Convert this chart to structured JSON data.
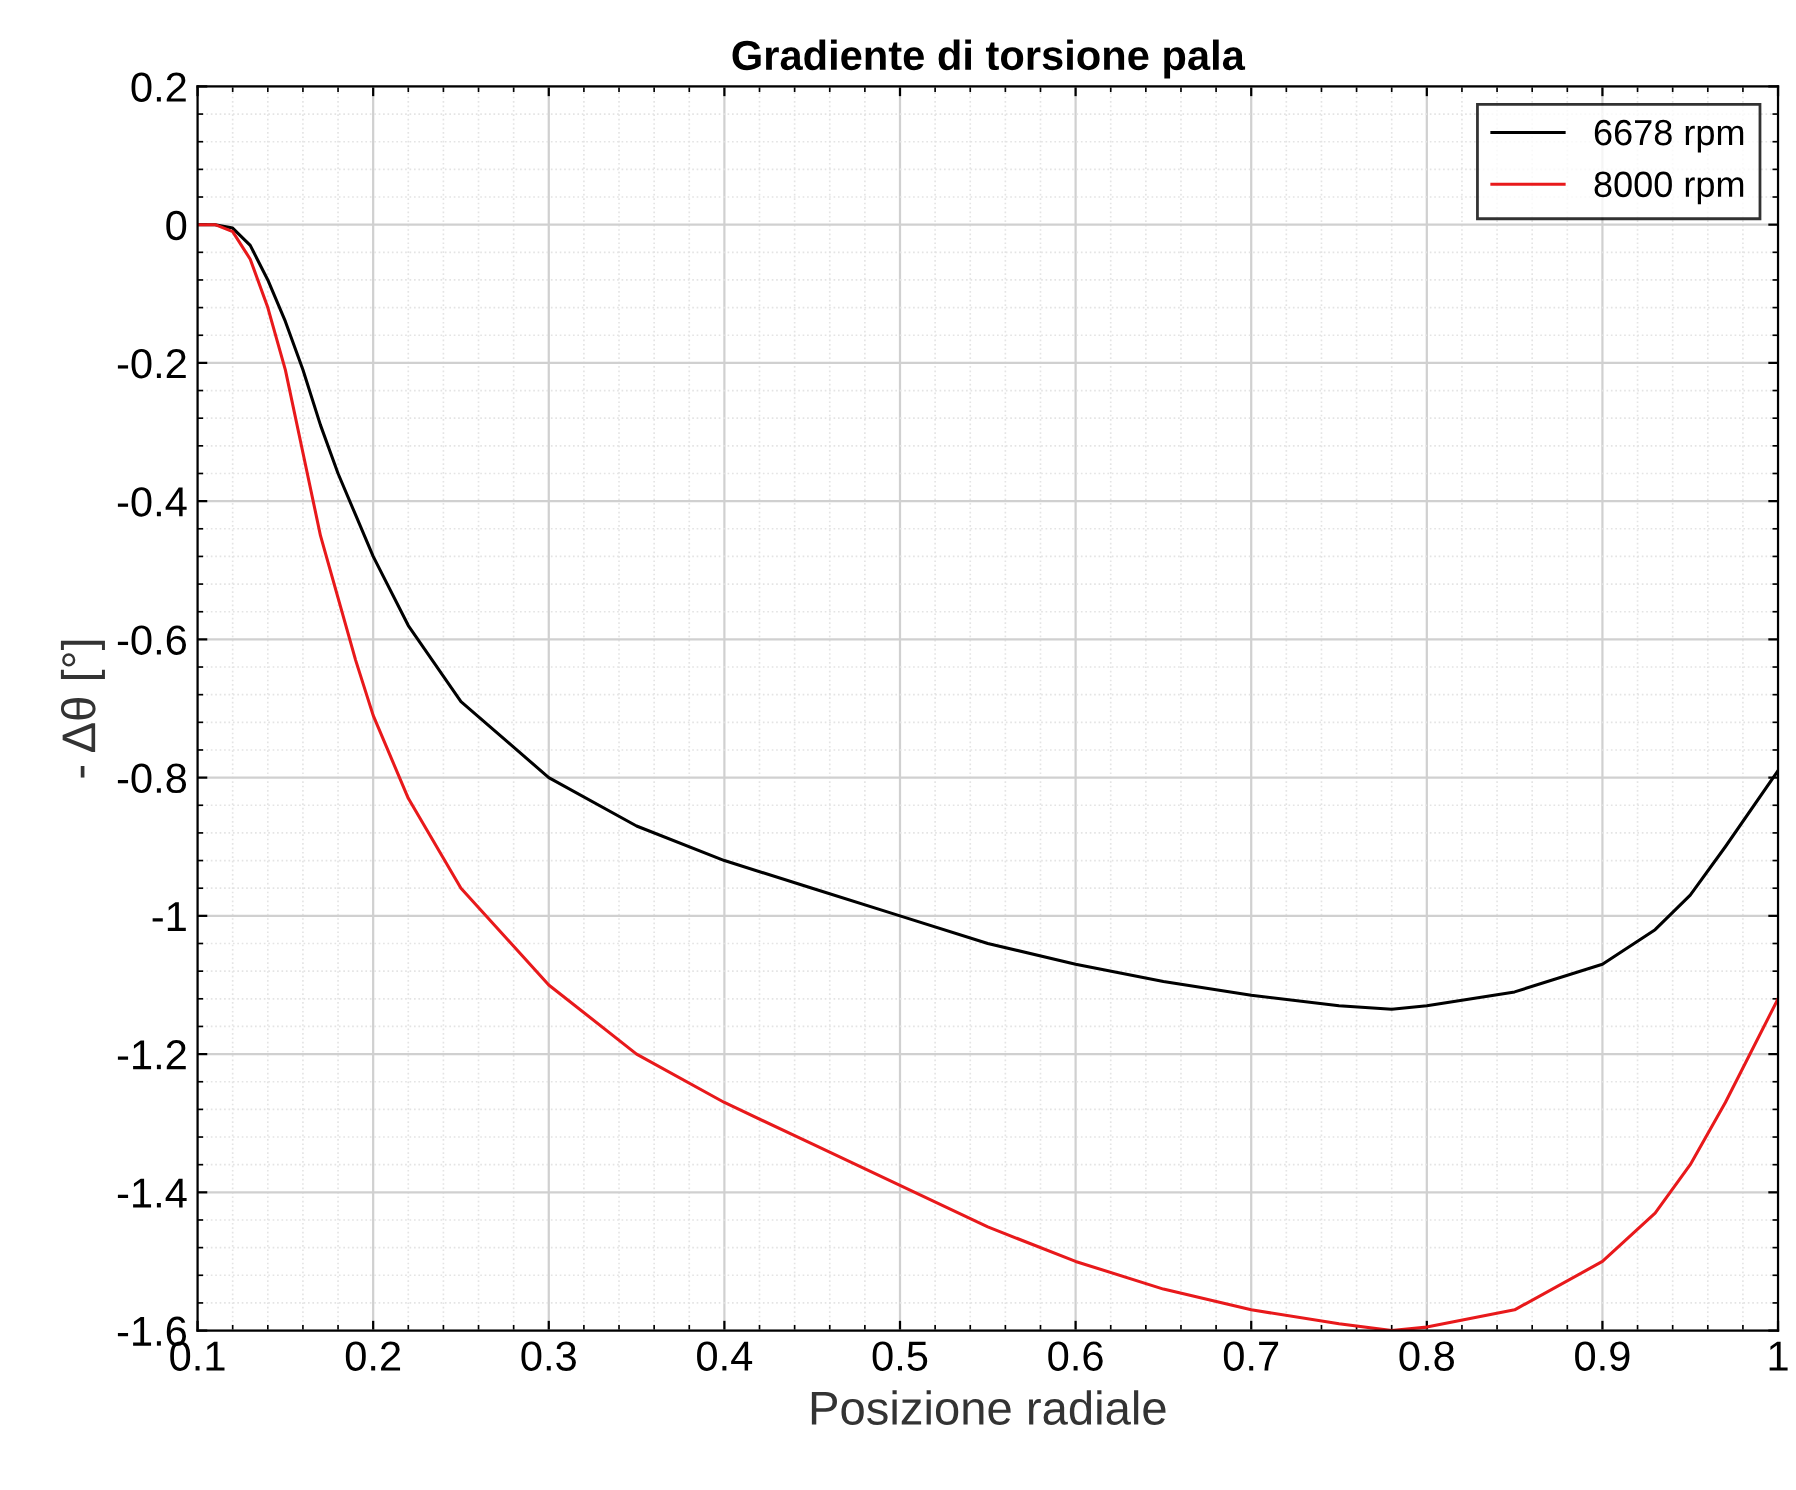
{
  "chart_data": {
    "type": "line",
    "title": "Gradiente di torsione pala",
    "xlabel": "Posizione radiale",
    "ylabel": "- Δθ [°]",
    "x": [
      0.1,
      0.11,
      0.12,
      0.13,
      0.14,
      0.15,
      0.16,
      0.17,
      0.18,
      0.19,
      0.2,
      0.22,
      0.25,
      0.3,
      0.35,
      0.4,
      0.45,
      0.5,
      0.55,
      0.6,
      0.65,
      0.7,
      0.75,
      0.78,
      0.8,
      0.85,
      0.9,
      0.93,
      0.95,
      0.97,
      1.0
    ],
    "series": [
      {
        "name": "6678 rpm",
        "color": "#000000",
        "values": [
          0,
          0,
          -0.005,
          -0.03,
          -0.08,
          -0.14,
          -0.21,
          -0.29,
          -0.36,
          -0.42,
          -0.48,
          -0.58,
          -0.69,
          -0.8,
          -0.87,
          -0.92,
          -0.96,
          -1.0,
          -1.04,
          -1.07,
          -1.095,
          -1.115,
          -1.13,
          -1.135,
          -1.13,
          -1.11,
          -1.07,
          -1.02,
          -0.97,
          -0.9,
          -0.79
        ]
      },
      {
        "name": "8000 rpm",
        "color": "#e8191b",
        "values": [
          0,
          0,
          -0.01,
          -0.05,
          -0.12,
          -0.21,
          -0.33,
          -0.45,
          -0.54,
          -0.63,
          -0.71,
          -0.83,
          -0.96,
          -1.1,
          -1.2,
          -1.27,
          -1.33,
          -1.39,
          -1.45,
          -1.5,
          -1.54,
          -1.57,
          -1.59,
          -1.6,
          -1.595,
          -1.57,
          -1.5,
          -1.43,
          -1.36,
          -1.27,
          -1.12
        ]
      }
    ],
    "xlim": [
      0.1,
      1
    ],
    "ylim": [
      -1.6,
      0.2
    ],
    "xticks": [
      0.1,
      0.2,
      0.3,
      0.4,
      0.5,
      0.6,
      0.7,
      0.8,
      0.9,
      1
    ],
    "yticks": [
      -1.6,
      -1.4,
      -1.2,
      -1,
      -0.8,
      -0.6,
      -0.4,
      -0.2,
      0,
      0.2
    ],
    "grid": true,
    "legend": "top right"
  }
}
